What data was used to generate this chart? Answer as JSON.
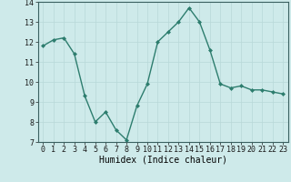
{
  "x": [
    0,
    1,
    2,
    3,
    4,
    5,
    6,
    7,
    8,
    9,
    10,
    11,
    12,
    13,
    14,
    15,
    16,
    17,
    18,
    19,
    20,
    21,
    22,
    23
  ],
  "y": [
    11.8,
    12.1,
    12.2,
    11.4,
    9.3,
    8.0,
    8.5,
    7.6,
    7.1,
    8.8,
    9.9,
    12.0,
    12.5,
    13.0,
    13.7,
    13.0,
    11.6,
    9.9,
    9.7,
    9.8,
    9.6,
    9.6,
    9.5,
    9.4
  ],
  "line_color": "#2d7d6e",
  "marker": "D",
  "marker_size": 2.0,
  "linewidth": 1.0,
  "xlabel": "Humidex (Indice chaleur)",
  "xlabel_fontsize": 7,
  "ylim": [
    7,
    14
  ],
  "xlim": [
    -0.5,
    23.5
  ],
  "yticks": [
    7,
    8,
    9,
    10,
    11,
    12,
    13,
    14
  ],
  "xticks": [
    0,
    1,
    2,
    3,
    4,
    5,
    6,
    7,
    8,
    9,
    10,
    11,
    12,
    13,
    14,
    15,
    16,
    17,
    18,
    19,
    20,
    21,
    22,
    23
  ],
  "xtick_labels": [
    "0",
    "1",
    "2",
    "3",
    "4",
    "5",
    "6",
    "7",
    "8",
    "9",
    "10",
    "11",
    "12",
    "13",
    "14",
    "15",
    "16",
    "17",
    "18",
    "19",
    "20",
    "21",
    "22",
    "23"
  ],
  "tick_fontsize": 6,
  "bg_color": "#ceeaea",
  "grid_color": "#b8d8d8",
  "grid_linewidth": 0.5
}
